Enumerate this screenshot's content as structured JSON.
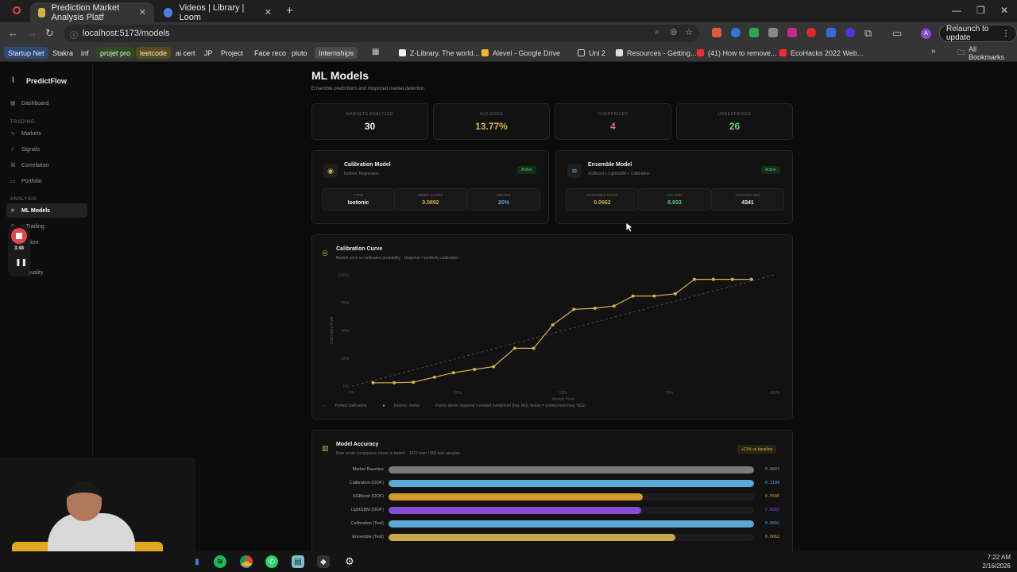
{
  "browser": {
    "tabs": [
      {
        "title": "Prediction Market Analysis Platf",
        "fav_color": "#d4b24a"
      },
      {
        "title": "Videos | Library | Loom",
        "fav_color": "#4a7fe6"
      }
    ],
    "url": "localhost:5173/models",
    "relaunch_label": "Relaunch to update",
    "bookmarks": [
      {
        "label": "Startup Net",
        "bg": "#2b4a7a"
      },
      {
        "label": "Stakra",
        "bg": ""
      },
      {
        "label": "inf",
        "bg": ""
      },
      {
        "label": "projet pro",
        "bg": "#2d4a22"
      },
      {
        "label": "leetcode",
        "bg": "#5a4b1a"
      },
      {
        "label": "ai cert",
        "bg": ""
      },
      {
        "label": "JP",
        "bg": ""
      },
      {
        "label": "Project",
        "bg": ""
      },
      {
        "label": "Face reco",
        "bg": ""
      },
      {
        "label": "pluto",
        "bg": ""
      },
      {
        "label": "Internships",
        "bg": "#4a4a4a"
      }
    ],
    "bookmarks_right": [
      {
        "label": "Z-Library. The world...",
        "fav": "#eeeeee"
      },
      {
        "label": "Alevel - Google Drive",
        "fav": "#f1b82d"
      },
      {
        "label": "Uni 2",
        "fav": ""
      },
      {
        "label": "Resources - Getting...",
        "fav": "#dddddd"
      },
      {
        "label": "(41) How to remove...",
        "fav": "#ff2a2a"
      },
      {
        "label": "EcoHacks 2022 Web...",
        "fav": "#ff2a2a"
      }
    ],
    "all_bookmarks": "All Bookmarks"
  },
  "sidebar": {
    "brand": "PredictFlow",
    "items_top": [
      {
        "label": "Dashboard",
        "icon": "grid-icon"
      }
    ],
    "section_trading": "TRADING",
    "items_trading": [
      {
        "label": "Markets",
        "icon": "chart-icon"
      },
      {
        "label": "Signals",
        "icon": "signal-icon"
      },
      {
        "label": "Correlation",
        "icon": "link-icon"
      },
      {
        "label": "Portfolio",
        "icon": "wallet-icon"
      }
    ],
    "section_analysis": "ANALYSIS",
    "items_analysis": [
      {
        "label": "ML Models",
        "icon": "brain-icon",
        "active": true
      },
      {
        "label": "y Trading",
        "icon": "bot-icon"
      },
      {
        "label": "bration",
        "icon": "gauge-icon"
      },
      {
        "label": "a Quality",
        "icon": "check-icon"
      }
    ]
  },
  "recorder": {
    "time": "3:48"
  },
  "page": {
    "title": "ML Models",
    "subtitle": "Ensemble predictions and mispriced market detection"
  },
  "stats": [
    {
      "label": "Markets Analyzed",
      "value": "30",
      "color": "#f2f2f2"
    },
    {
      "label": "Avg Edge",
      "value": "13.77%",
      "color": "#d4b24a"
    },
    {
      "label": "Overpriced",
      "value": "4",
      "color": "#e06a7a"
    },
    {
      "label": "Underpriced",
      "value": "26",
      "color": "#5fd07a"
    }
  ],
  "calibration_model": {
    "title": "Calibration Model",
    "subtitle": "Isotonic Regression",
    "badge": "Active",
    "metrics": [
      {
        "label": "Type",
        "value": "Isotonic",
        "color": "#f2f2f2"
      },
      {
        "label": "Brier Score",
        "value": "0.0892",
        "color": "#d4b24a"
      },
      {
        "label": "Weight",
        "value": "20%",
        "color": "#5aa8e0"
      }
    ]
  },
  "ensemble_model": {
    "title": "Ensemble Model",
    "subtitle": "XGBoost + LightGBM + Calibration",
    "badge": "Active",
    "metrics": [
      {
        "label": "Ensemble Brier",
        "value": "0.0662",
        "color": "#d4b24a"
      },
      {
        "label": "AUC ROC",
        "value": "0.933",
        "color": "#5fd07a"
      },
      {
        "label": "Training Set",
        "value": "4341",
        "color": "#f2f2f2"
      }
    ]
  },
  "calibration_curve": {
    "title": "Calibration Curve",
    "subtitle": "Market price vs calibrated probability · Diagonal = perfectly calibrated",
    "legend_perfect": "Perfect calibration",
    "legend_model": "Isotonic model",
    "legend_note": "Points above diagonal = market overpriced (buy NO), below = underpriced (buy YES)"
  },
  "chart_data": {
    "type": "line",
    "title": "Calibration Curve",
    "xlabel": "Market Price",
    "ylabel": "Calibrated Prob",
    "x_ticks": [
      "0%",
      "25%",
      "50%",
      "75%",
      "100%"
    ],
    "y_ticks": [
      "0%",
      "25%",
      "50%",
      "75%",
      "100%"
    ],
    "xlim": [
      0,
      1
    ],
    "ylim": [
      0,
      1
    ],
    "series": [
      {
        "name": "Isotonic model",
        "color": "#d4b24a",
        "x": [
          0.05,
          0.1,
          0.145,
          0.195,
          0.24,
          0.29,
          0.335,
          0.385,
          0.43,
          0.475,
          0.525,
          0.575,
          0.62,
          0.665,
          0.715,
          0.765,
          0.81,
          0.855,
          0.9,
          0.945
        ],
        "y": [
          0.03,
          0.03,
          0.035,
          0.08,
          0.12,
          0.15,
          0.175,
          0.34,
          0.34,
          0.55,
          0.69,
          0.7,
          0.72,
          0.81,
          0.81,
          0.83,
          0.96,
          0.96,
          0.96,
          0.96
        ]
      },
      {
        "name": "Perfect calibration",
        "color": "#555555",
        "x": [
          0,
          1
        ],
        "y": [
          0,
          1
        ]
      }
    ]
  },
  "accuracy": {
    "title": "Model Accuracy",
    "subtitle": "Brier score comparison (lower is better) · 3472 train / 869 test samples",
    "badge": "+21% vs baseline",
    "rows": [
      {
        "label": "Market Baseline",
        "value": "0.0843",
        "fill": 1.0,
        "color": "#7a7a7a"
      },
      {
        "label": "Calibration (OOF)",
        "value": "0.1194",
        "fill": 1.0,
        "color": "#5aa8d8"
      },
      {
        "label": "XGBoost (OOF)",
        "value": "0.0586",
        "fill": 0.695,
        "color": "#d49a2a"
      },
      {
        "label": "LightGBM (OOF)",
        "value": "0.0583",
        "fill": 0.691,
        "color": "#8a4ad8"
      },
      {
        "label": "Calibration (Test)",
        "value": "0.0892",
        "fill": 1.0,
        "color": "#5aa8d8"
      },
      {
        "label": "Ensemble (Test)",
        "value": "0.0662",
        "fill": 0.785,
        "color": "#c8a84a"
      }
    ]
  },
  "taskbar": {
    "time": "7:22 AM",
    "date": "2/16/2026"
  }
}
